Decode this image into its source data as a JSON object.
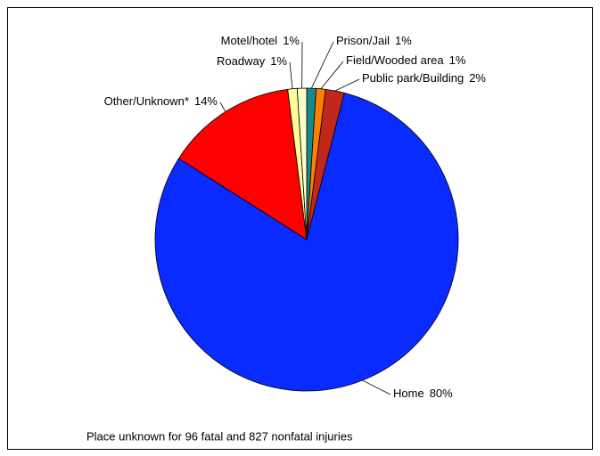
{
  "chart_data": {
    "type": "pie",
    "categories": [
      "Prison/Jail",
      "Field/Wooded area",
      "Public park/Building",
      "Home",
      "Other/Unknown*",
      "Roadway",
      "Motel/hotel"
    ],
    "values": [
      1,
      1,
      2,
      80,
      14,
      1,
      1
    ],
    "value_labels": [
      "1%",
      "1%",
      "2%",
      "80%",
      "14%",
      "1%",
      "1%"
    ],
    "colors": [
      "#168b8b",
      "#ff8000",
      "#c0281e",
      "#0a2bff",
      "#ff0000",
      "#ffff99",
      "#ffffcc"
    ],
    "footnote": "Place unknown for 96 fatal and 827 nonfatal injuries"
  }
}
